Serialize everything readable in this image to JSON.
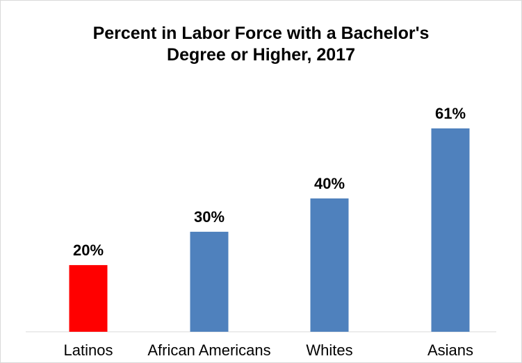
{
  "chart_data": {
    "type": "bar",
    "title_line1": "Percent in Labor Force with a Bachelor's",
    "title_line2": "Degree or Higher, 2017",
    "categories": [
      "Latinos",
      "African Americans",
      "Whites",
      "Asians"
    ],
    "values": [
      20,
      30,
      40,
      61
    ],
    "value_labels": [
      "20%",
      "30%",
      "40%",
      "61%"
    ],
    "colors": [
      "#ff0000",
      "#4f81bd",
      "#4f81bd",
      "#4f81bd"
    ],
    "ylim": [
      0,
      61
    ],
    "grid": false,
    "legend": "none"
  }
}
